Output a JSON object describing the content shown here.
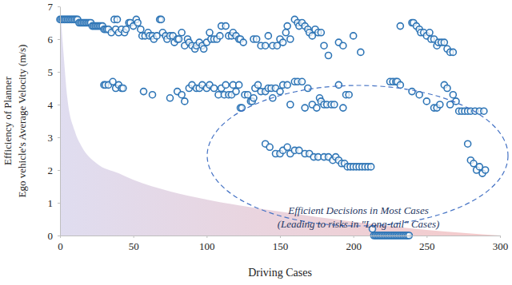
{
  "chart_data": {
    "type": "scatter",
    "x_label": "Driving Cases",
    "y_label": [
      "Efficiency of Planner",
      "Ego vehicle's Average Velocity (m/s)"
    ],
    "annotations": [
      "Efficient Decisions in Most Cases",
      "(Leading to risks in \"Long-tail\" Cases)"
    ],
    "xlim": [
      0,
      300
    ],
    "ylim": [
      0,
      7
    ],
    "xticks": [
      0,
      50,
      100,
      150,
      200,
      250,
      300
    ],
    "yticks": [
      0,
      1,
      2,
      3,
      4,
      5,
      6,
      7
    ],
    "series": [
      {
        "type": "area",
        "color": "#dcd9ee",
        "x": [
          0,
          2,
          5,
          10,
          15,
          25,
          40,
          50,
          75,
          100,
          150,
          200,
          250,
          300
        ],
        "values": [
          7,
          5.8,
          4.2,
          3.2,
          2.7,
          2.2,
          1.9,
          1.7,
          1.35,
          1.1,
          0.73,
          0.42,
          0.17,
          0
        ]
      },
      {
        "type": "scatter",
        "color": "#2e75b6",
        "marker": "circle",
        "x": [
          0,
          1,
          2,
          3,
          4,
          5,
          6,
          7,
          8,
          9,
          10,
          11,
          12,
          13,
          14,
          15,
          16,
          17,
          18,
          19,
          20,
          21,
          22,
          23,
          24,
          25,
          26,
          27,
          28,
          29,
          30,
          31,
          32,
          33,
          35,
          37,
          38,
          39,
          40,
          42,
          44,
          45,
          47,
          48,
          50,
          52,
          53,
          55,
          56,
          58,
          60,
          61,
          63,
          64,
          66,
          68,
          69,
          70,
          72,
          73,
          75,
          77,
          78,
          80,
          81,
          83,
          85,
          87,
          88,
          90,
          92,
          93,
          95,
          97,
          98,
          100,
          102,
          103,
          105,
          107,
          109,
          110,
          113,
          115,
          117,
          118,
          120,
          122,
          123,
          125,
          132,
          134,
          137,
          140,
          142,
          145,
          148,
          150,
          152,
          154,
          155,
          157,
          160,
          162,
          163,
          165,
          167,
          169,
          170,
          172,
          174,
          176,
          178,
          180,
          183,
          190,
          193,
          200,
          205,
          232,
          240,
          241,
          243,
          245,
          246,
          248,
          250,
          252,
          253,
          255,
          257,
          258,
          260,
          262,
          264,
          266,
          268,
          30,
          31,
          33,
          36,
          38,
          40,
          42,
          43,
          57,
          63,
          75,
          80,
          83,
          85,
          88,
          90,
          93,
          95,
          97,
          100,
          102,
          105,
          108,
          110,
          112,
          113,
          115,
          117,
          118,
          120,
          122,
          123,
          124,
          126,
          128,
          130,
          131,
          132,
          133,
          135,
          137,
          140,
          142,
          144,
          145,
          147,
          150,
          152,
          155,
          157,
          160,
          162,
          165,
          167,
          169,
          172,
          175,
          177,
          178,
          180,
          182,
          185,
          187,
          190,
          193,
          195,
          197,
          225,
          227,
          229,
          230,
          232,
          240,
          245,
          250,
          255,
          257,
          259,
          262,
          264,
          266,
          268,
          270,
          272,
          274,
          276,
          278,
          280,
          283,
          286,
          289,
          140,
          143,
          147,
          150,
          152,
          155,
          157,
          160,
          163,
          167,
          170,
          173,
          176,
          180,
          183,
          186,
          188,
          190,
          192,
          194,
          196,
          198,
          200,
          202,
          204,
          206,
          208,
          210,
          212,
          278,
          280,
          282,
          284,
          286,
          288,
          290,
          213,
          214,
          215,
          216,
          217,
          218,
          219,
          220,
          221,
          222,
          223,
          224,
          225,
          226,
          227,
          228,
          229,
          230,
          231,
          232,
          233,
          234,
          235,
          236,
          237,
          238
        ],
        "values": [
          6.6,
          6.6,
          6.6,
          6.6,
          6.6,
          6.6,
          6.6,
          6.6,
          6.6,
          6.6,
          6.6,
          6.6,
          6.6,
          6.5,
          6.5,
          6.5,
          6.5,
          6.5,
          6.5,
          6.5,
          6.5,
          6.5,
          6.4,
          6.4,
          6.4,
          6.4,
          6.4,
          6.4,
          6.4,
          6.4,
          6.3,
          6.3,
          6.3,
          6.3,
          6.2,
          6.6,
          6.3,
          6.6,
          6.2,
          6.3,
          6.2,
          6.3,
          6.5,
          6.5,
          6.4,
          6.6,
          6.5,
          6.3,
          6.1,
          6.1,
          6.2,
          6.1,
          6.1,
          6.0,
          6.1,
          6.6,
          6.6,
          6.2,
          6.1,
          6.0,
          6.1,
          6.1,
          5.9,
          6.0,
          6.0,
          6.2,
          5.8,
          6.0,
          5.9,
          5.8,
          5.7,
          5.8,
          5.9,
          5.8,
          5.7,
          5.9,
          6.2,
          6.0,
          6.0,
          6.0,
          6.1,
          6.4,
          6.4,
          6.1,
          6.1,
          6.2,
          6.1,
          6.0,
          6.0,
          5.9,
          6.0,
          6.0,
          5.8,
          5.8,
          6.1,
          5.8,
          5.8,
          6.0,
          5.9,
          6.2,
          6.4,
          6.0,
          6.6,
          6.5,
          6.4,
          6.5,
          6.4,
          6.3,
          6.2,
          6.1,
          6.3,
          6.2,
          6.2,
          5.8,
          5.5,
          5.9,
          5.8,
          6.1,
          5.6,
          6.4,
          6.5,
          6.5,
          6.4,
          6.3,
          6.2,
          6.2,
          6.1,
          6.2,
          6.0,
          6.0,
          5.8,
          5.9,
          5.9,
          5.9,
          5.7,
          5.6,
          5.6,
          4.6,
          4.6,
          4.6,
          4.7,
          4.5,
          4.6,
          4.5,
          4.5,
          4.4,
          4.3,
          4.2,
          4.4,
          4.3,
          4.1,
          4.5,
          4.6,
          4.5,
          4.5,
          4.6,
          4.5,
          4.6,
          4.5,
          4.3,
          4.5,
          4.3,
          4.6,
          4.3,
          4.3,
          4.6,
          4.4,
          4.6,
          3.9,
          3.9,
          4.3,
          4.3,
          4.1,
          4.1,
          4.2,
          4.5,
          4.6,
          4.4,
          4.4,
          4.5,
          4.5,
          4.2,
          4.5,
          4.4,
          4.6,
          4.6,
          4.0,
          4.7,
          4.7,
          4.7,
          3.9,
          4.5,
          4.0,
          3.9,
          4.2,
          4.1,
          4.0,
          4.0,
          4.0,
          4.0,
          4.6,
          3.9,
          4.3,
          4.3,
          4.7,
          4.7,
          4.7,
          4.7,
          4.6,
          4.4,
          4.3,
          4.1,
          3.9,
          3.9,
          4.0,
          4.6,
          4.5,
          4.0,
          4.3,
          4.1,
          3.8,
          3.8,
          3.8,
          3.8,
          3.8,
          3.8,
          3.8,
          3.8,
          2.8,
          2.7,
          2.5,
          2.5,
          2.6,
          2.7,
          2.5,
          2.6,
          2.6,
          2.5,
          2.5,
          2.4,
          2.4,
          2.4,
          2.4,
          2.3,
          2.4,
          2.3,
          2.2,
          2.2,
          2.1,
          2.1,
          2.1,
          2.1,
          2.1,
          2.1,
          2.1,
          2.1,
          2.1,
          2.8,
          2.3,
          2.2,
          2.0,
          2.1,
          1.9,
          2.0,
          0.2,
          0,
          0,
          0,
          0,
          0,
          0,
          0,
          0,
          0,
          0,
          0,
          0,
          0,
          0,
          0,
          0,
          0,
          0,
          0,
          0,
          0,
          0,
          0,
          0,
          0
        ]
      }
    ]
  }
}
